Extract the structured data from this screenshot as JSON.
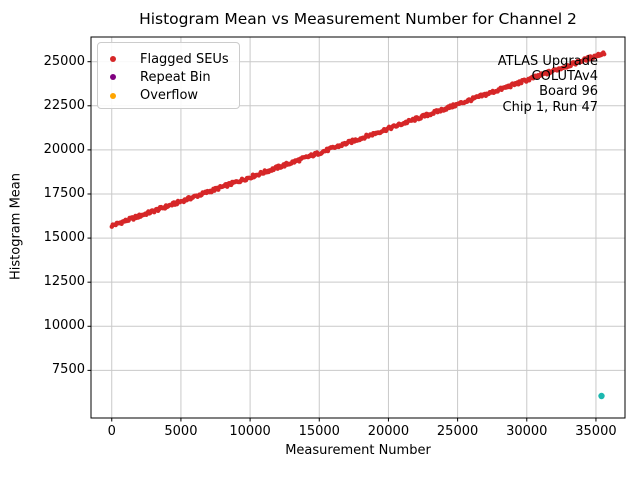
{
  "chart_data": {
    "type": "scatter",
    "title": "Histogram Mean vs Measurement Number for Channel 2",
    "xlabel": "Measurement Number",
    "ylabel": "Histogram Mean",
    "xlim": [
      -1500,
      37100
    ],
    "ylim": [
      4800,
      26400
    ],
    "xticks": [
      0,
      5000,
      10000,
      15000,
      20000,
      25000,
      30000,
      35000
    ],
    "yticks": [
      7500,
      10000,
      12500,
      15000,
      17500,
      20000,
      22500,
      25000
    ],
    "grid": true,
    "grid_color": "#c9c9c9",
    "spine_color": "#000000",
    "legend": {
      "position": "upper-left",
      "entries": [
        {
          "label": "Flagged SEUs",
          "color": "#d62728"
        },
        {
          "label": "Repeat Bin",
          "color": "#800080"
        },
        {
          "label": "Overflow",
          "color": "#ffa500"
        }
      ]
    },
    "annotation": {
      "lines": [
        "ATLAS Upgrade",
        "COLUTAv4",
        "Board 96",
        "Chip 1, Run 47"
      ],
      "align": "right"
    },
    "series": [
      {
        "name": "Flagged SEUs",
        "color": "#d62728",
        "marker_radius": 2.2,
        "band": {
          "x_start": 0,
          "y_start": 15700,
          "x_end": 35600,
          "y_end": 25500,
          "n_points": 500,
          "y_jitter": 90
        }
      },
      {
        "name": "unlabeled-teal-point",
        "color": "#1cb8b0",
        "marker_radius": 3.2,
        "points": [
          [
            35400,
            6050
          ]
        ]
      }
    ]
  }
}
